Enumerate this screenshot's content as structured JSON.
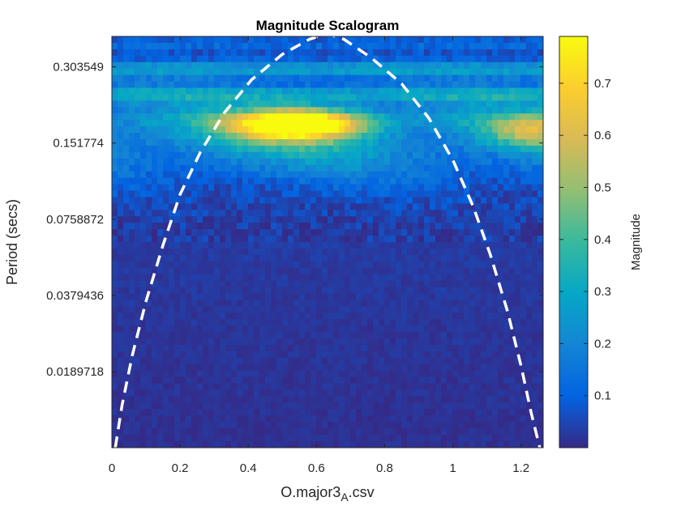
{
  "chart_data": {
    "type": "heatmap",
    "title": "Magnitude Scalogram",
    "xlabel_main": "O.major3",
    "xlabel_sub": "A",
    "xlabel_suffix": ".csv",
    "ylabel": "Period (secs)",
    "colorbar_label": "Magnitude",
    "x_range": [
      0,
      1.265
    ],
    "x_ticks": [
      0,
      0.2,
      0.4,
      0.6,
      0.8,
      1,
      1.2
    ],
    "x_tick_labels": [
      "0",
      "0.2",
      "0.4",
      "0.6",
      "0.8",
      "1",
      "1.2"
    ],
    "y_scale": "log2",
    "y_range": [
      0.0095,
      0.4
    ],
    "y_ticks": [
      0.303549,
      0.151774,
      0.0758872,
      0.0379436,
      0.0189718
    ],
    "y_tick_labels": [
      "0.303549",
      "0.151774",
      "0.0758872",
      "0.0379436",
      "0.0189718"
    ],
    "color_range": [
      0,
      0.79
    ],
    "colorbar_ticks": [
      0.1,
      0.2,
      0.3,
      0.4,
      0.5,
      0.6,
      0.7
    ],
    "colorbar_tick_labels": [
      "0.1",
      "0.2",
      "0.3",
      "0.4",
      "0.5",
      "0.6",
      "0.7"
    ],
    "colormap": "parula",
    "cone_of_influence": {
      "style": "dashed",
      "color": "#ffffff",
      "x": [
        0.01,
        0.03,
        0.06,
        0.1,
        0.15,
        0.2,
        0.26,
        0.33,
        0.41,
        0.5,
        0.58,
        0.63,
        0.68,
        0.76,
        0.85,
        0.93,
        1.0,
        1.06,
        1.11,
        1.16,
        1.2,
        1.23,
        1.255
      ],
      "y": [
        0.0095,
        0.014,
        0.022,
        0.036,
        0.06,
        0.095,
        0.14,
        0.2,
        0.27,
        0.34,
        0.39,
        0.41,
        0.39,
        0.33,
        0.26,
        0.19,
        0.13,
        0.085,
        0.055,
        0.033,
        0.02,
        0.013,
        0.0095
      ]
    },
    "magnitude_features": [
      {
        "name": "main-ridge",
        "x_center": 0.55,
        "period": 0.18,
        "peak": 0.79
      },
      {
        "name": "upper-bands",
        "period_range": [
          0.2,
          0.4
        ],
        "typical": 0.45
      },
      {
        "name": "low-period-floor",
        "period_range": [
          0.0095,
          0.06
        ],
        "typical": 0.03
      }
    ]
  }
}
